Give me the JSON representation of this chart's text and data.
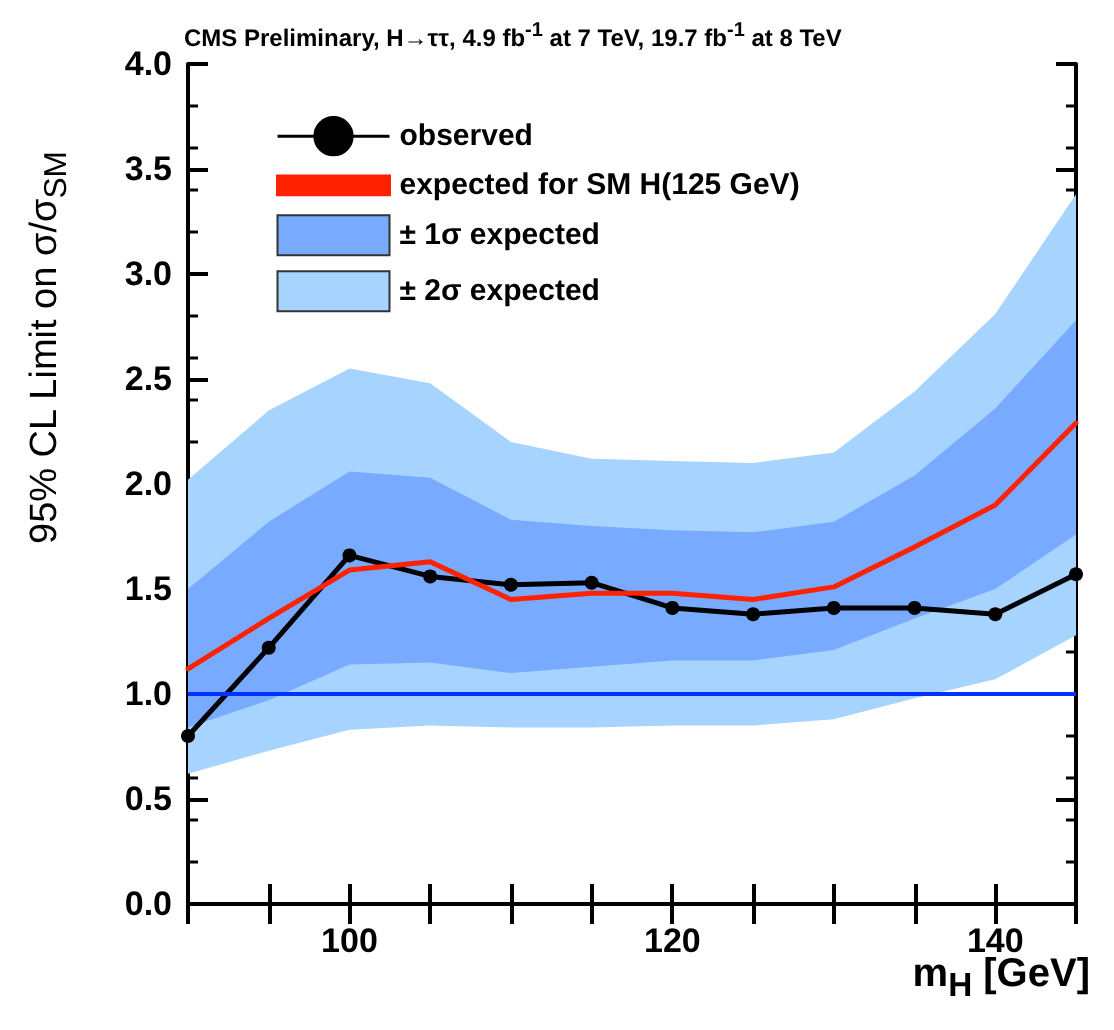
{
  "chart_data": {
    "type": "line",
    "title": "CMS Preliminary, H→ττ, 4.9 fb$^{-1}$ at 7 TeV, 19.7 fb$^{-1}$ at 8 TeV",
    "xlabel": "m$_{H}$ [GeV]",
    "ylabel": "95% CL Limit on  σ/σ$_{SM}$",
    "x": [
      90,
      95,
      100,
      105,
      110,
      115,
      120,
      125,
      130,
      135,
      140,
      145
    ],
    "series": [
      {
        "name": "observed",
        "color": "#000000",
        "marker": "circle",
        "values": [
          0.8,
          1.22,
          1.66,
          1.56,
          1.52,
          1.53,
          1.41,
          1.38,
          1.41,
          1.41,
          1.38,
          1.57
        ]
      },
      {
        "name": "expected for SM H(125 GeV)",
        "color": "#ff2200",
        "marker": "none",
        "values": [
          1.12,
          1.36,
          1.59,
          1.63,
          1.45,
          1.48,
          1.48,
          1.45,
          1.51,
          1.7,
          1.9,
          2.29
        ]
      },
      {
        "name": "± 1σ expected",
        "type": "area",
        "color": "#78aaff",
        "values": [
          null,
          null,
          null,
          null,
          null,
          null,
          null,
          null,
          null,
          null,
          null,
          null
        ],
        "lower": [
          0.84,
          0.97,
          1.14,
          1.15,
          1.1,
          1.13,
          1.16,
          1.16,
          1.21,
          1.36,
          1.5,
          1.76
        ],
        "upper": [
          1.5,
          1.82,
          2.06,
          2.03,
          1.83,
          1.8,
          1.78,
          1.77,
          1.82,
          2.04,
          2.36,
          2.78
        ]
      },
      {
        "name": "± 2σ expected",
        "type": "area",
        "color": "#a6d4ff",
        "values": [
          null,
          null,
          null,
          null,
          null,
          null,
          null,
          null,
          null,
          null,
          null,
          null
        ],
        "lower": [
          0.62,
          0.73,
          0.83,
          0.85,
          0.84,
          0.84,
          0.85,
          0.85,
          0.88,
          0.98,
          1.07,
          1.28
        ],
        "upper": [
          2.02,
          2.35,
          2.55,
          2.48,
          2.2,
          2.12,
          2.11,
          2.1,
          2.15,
          2.44,
          2.81,
          3.38
        ]
      }
    ],
    "xlim": [
      90,
      145
    ],
    "xticks": [
      {
        "value": 90,
        "label": null
      },
      {
        "value": 95,
        "label": null
      },
      100,
      {
        "value": 105,
        "label": null
      },
      {
        "value": 110,
        "label": null
      },
      {
        "value": 115,
        "label": null
      },
      120,
      {
        "value": 125,
        "label": null
      },
      {
        "value": 130,
        "label": null
      },
      {
        "value": 135,
        "label": null
      },
      140,
      {
        "value": 145,
        "label": null
      }
    ],
    "ylim": [
      0,
      4
    ],
    "yticks": [
      {
        "value": 0,
        "label": "0.0"
      },
      0.5,
      {
        "value": 1,
        "label": "1.0"
      },
      1.5,
      {
        "value": 2,
        "label": "2.0"
      },
      2.5,
      {
        "value": 3,
        "label": "3.0"
      },
      3.5,
      {
        "value": 4,
        "label": "4.0"
      }
    ],
    "ref_lines": [
      {
        "axis": "y",
        "value": 1,
        "color": "#0033ff",
        "line_style": "solid"
      }
    ],
    "legend": "top left",
    "grid": false
  }
}
